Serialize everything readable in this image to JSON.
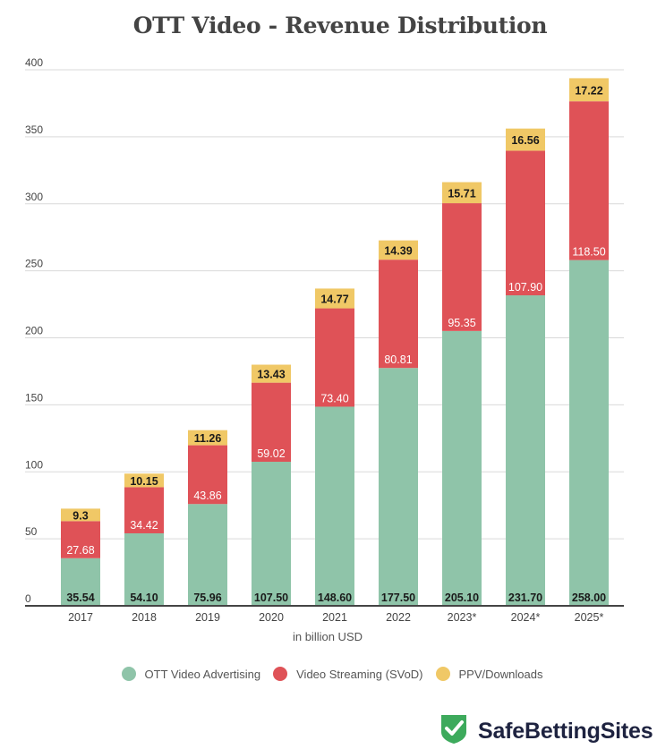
{
  "chart_data": {
    "type": "bar",
    "stacked": true,
    "title": "OTT Video - Revenue Distribution",
    "xlabel": "in billion USD",
    "ylabel": "",
    "ylim": [
      0,
      400
    ],
    "yticks": [
      0,
      50,
      100,
      150,
      200,
      250,
      300,
      350,
      400
    ],
    "grid": true,
    "legend_position": "bottom",
    "categories": [
      "2017",
      "2018",
      "2019",
      "2020",
      "2021",
      "2022",
      "2023*",
      "2024*",
      "2025*"
    ],
    "series": [
      {
        "name": "OTT Video Advertising",
        "color": "#8fc4a9",
        "label_color": "#1a1a1a",
        "values": [
          35.54,
          54.1,
          75.96,
          107.5,
          148.6,
          177.5,
          205.1,
          231.7,
          258.0
        ],
        "labels": [
          "35.54",
          "54.10",
          "75.96",
          "107.50",
          "148.60",
          "177.50",
          "205.10",
          "231.70",
          "258.00"
        ]
      },
      {
        "name": "Video Streaming (SVoD)",
        "color": "#df5257",
        "label_color": "#ffffff",
        "values": [
          27.68,
          34.42,
          43.86,
          59.02,
          73.4,
          80.81,
          95.35,
          107.9,
          118.5
        ],
        "labels": [
          "27.68",
          "34.42",
          "43.86",
          "59.02",
          "73.40",
          "80.81",
          "95.35",
          "107.90",
          "118.50"
        ]
      },
      {
        "name": "PPV/Downloads",
        "color": "#f0c866",
        "label_color": "#1a1a1a",
        "values": [
          9.3,
          10.15,
          11.26,
          13.43,
          14.77,
          14.39,
          15.71,
          16.56,
          17.22
        ],
        "labels": [
          "9.3",
          "10.15",
          "11.26",
          "13.43",
          "14.77",
          "14.39",
          "15.71",
          "16.56",
          "17.22"
        ]
      }
    ]
  },
  "branding": {
    "name": "SafeBettingSites",
    "icon": "shield-check-icon",
    "icon_color": "#3daa5c"
  }
}
